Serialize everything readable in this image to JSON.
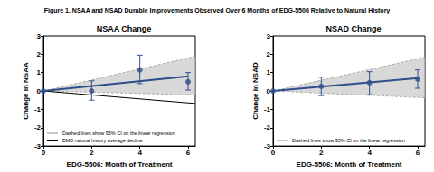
{
  "title": "Figure 1. NSAA and NSAD Durable Improvements Observed Over 6 Months of EDG-5506 Relative to Natural History",
  "chart_data": [
    {
      "type": "line",
      "title": "NSAA Change",
      "x_label": "EDG-5506: Month of Treatment",
      "y_label": "Change in NSAA",
      "xlim": [
        0,
        6.3
      ],
      "xticks": [
        0,
        2,
        4,
        6
      ],
      "ylim": [
        -3,
        3
      ],
      "yticks": [
        -3,
        -2,
        -1,
        0,
        1,
        2,
        3
      ],
      "grid": false,
      "legend": "lower left",
      "series": [
        {
          "name": "Dashed lines show 95% CI on the linear regression",
          "type": "band",
          "color": "#c8c8c8",
          "line_style": "dashed",
          "x": [
            0,
            6.3
          ],
          "lower": [
            0,
            -0.21
          ],
          "upper": [
            0,
            1.89
          ]
        },
        {
          "name": "BMD natural history average decline",
          "type": "line",
          "color": "#000000",
          "marker": "none",
          "line_style": "solid",
          "x": [
            0,
            6.3
          ],
          "values": [
            0,
            -0.68
          ]
        },
        {
          "type": "line",
          "color": "#2f4f8a",
          "marker": "none",
          "line_style": "solid",
          "x": [
            0,
            6
          ],
          "values": [
            0,
            0.8
          ]
        },
        {
          "type": "scatter",
          "color": "#2f4f8a",
          "marker": "circle",
          "x": [
            0,
            2,
            4,
            6
          ],
          "values": [
            0,
            0.0,
            1.15,
            0.5
          ],
          "ci_low": [
            null,
            -0.5,
            0.4,
            0.05
          ],
          "ci_high": [
            null,
            0.55,
            1.95,
            1.0
          ]
        }
      ]
    },
    {
      "type": "line",
      "title": "NSAD Change",
      "x_label": "EDG-5506: Month of Treatment",
      "y_label": "Change in NSAD",
      "xlim": [
        0,
        6.3
      ],
      "xticks": [
        0,
        2,
        4,
        6
      ],
      "ylim": [
        -3,
        3
      ],
      "yticks": [
        -3,
        -2,
        -1,
        0,
        1,
        2,
        3
      ],
      "grid": false,
      "legend": "lower left",
      "series": [
        {
          "name": "Dashed lines show 95% CI on the linear regression",
          "type": "band",
          "color": "#c8c8c8",
          "line_style": "dashed",
          "x": [
            0,
            6.3
          ],
          "lower": [
            0,
            -0.37
          ],
          "upper": [
            0,
            1.84
          ]
        },
        {
          "type": "line",
          "color": "#2f4f8a",
          "marker": "none",
          "line_style": "solid",
          "x": [
            0,
            6
          ],
          "values": [
            0,
            0.7
          ]
        },
        {
          "type": "scatter",
          "color": "#2f4f8a",
          "marker": "circle",
          "x": [
            0,
            2,
            4,
            6
          ],
          "values": [
            0,
            0.25,
            0.45,
            0.65
          ],
          "ci_low": [
            null,
            -0.25,
            -0.2,
            0.15
          ],
          "ci_high": [
            null,
            0.75,
            1.05,
            1.15
          ]
        }
      ]
    }
  ]
}
